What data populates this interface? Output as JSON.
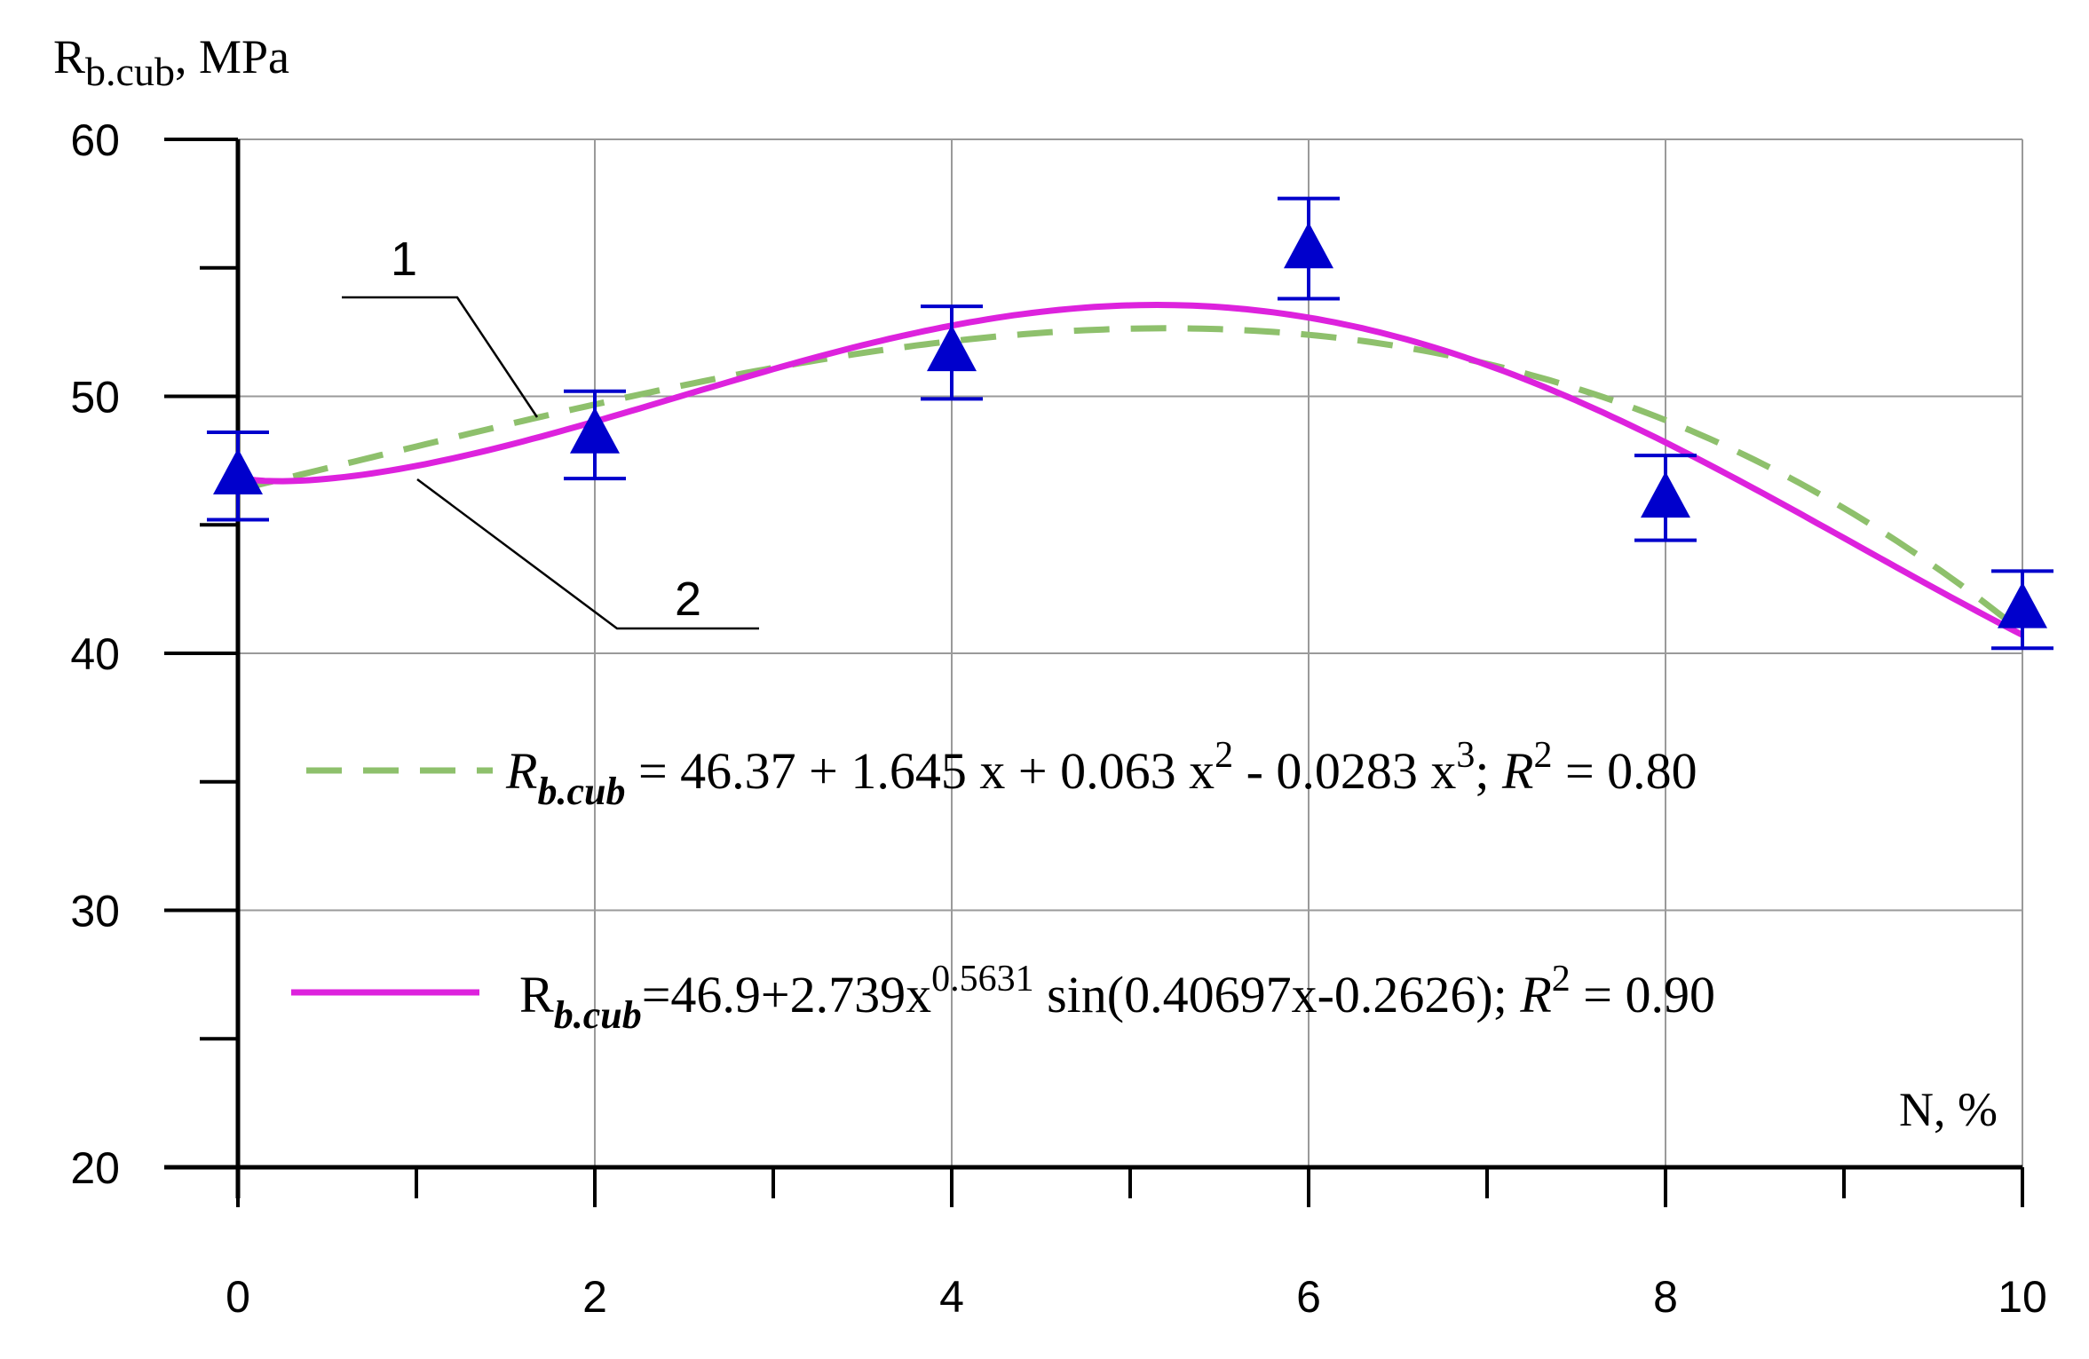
{
  "chart_data": {
    "type": "line",
    "xlim": [
      0,
      10
    ],
    "ylim": [
      20,
      60
    ],
    "x_ticks": [
      0,
      2,
      4,
      6,
      8,
      10
    ],
    "x_tick_labels": [
      "0",
      "2",
      "4",
      "6",
      "8",
      "10"
    ],
    "x_minor_ticks": [
      1,
      3,
      5,
      7,
      9
    ],
    "y_ticks": [
      20,
      30,
      40,
      50,
      60
    ],
    "y_tick_labels": [
      "20",
      "30",
      "40",
      "50",
      "60"
    ],
    "y_minor_ticks": [
      25,
      35,
      45,
      55
    ],
    "grid": true,
    "xlabel": "N, %",
    "ylabel": {
      "main": "R",
      "sub": "b.cub",
      "suffix": ", MPa"
    },
    "points": {
      "marker": "triangle",
      "color": "#0000cc",
      "x": [
        0,
        2,
        4,
        6,
        8,
        10
      ],
      "y": [
        46.9,
        48.5,
        51.7,
        55.7,
        46.0,
        41.7
      ],
      "err_low": [
        45.2,
        46.8,
        49.9,
        53.8,
        44.4,
        40.2
      ],
      "err_high": [
        48.6,
        50.2,
        53.5,
        57.7,
        47.7,
        43.2
      ]
    },
    "series": [
      {
        "callout": "1",
        "style": "dashed",
        "color": "#8ec06c",
        "model": "cubic",
        "coefficients": [
          46.37,
          1.645,
          0.063,
          -0.0283
        ],
        "equation": {
          "lhs_main": "R",
          "lhs_sub": "b.cub",
          "p1": " =  46.37 + 1.645 x + 0.063 x",
          "sup1": "2",
          "p2": " - 0.0283 x",
          "sup2": "3",
          "p3": ";  ",
          "r2_main": "R",
          "r2_sup": "2",
          "r2_value": " = 0.80"
        }
      },
      {
        "callout": "2",
        "style": "solid",
        "color": "#dd22dd",
        "model": "power-sine",
        "coefficients": [
          46.9,
          2.739,
          0.5631,
          0.40697,
          -0.2626
        ],
        "equation": {
          "lhs_main": "R",
          "lhs_sub": "b.cub",
          "p1": "=46.9+2.739x",
          "sup1": "0.5631",
          "p2": " sin(0.40697x-0.2626);  ",
          "r2_main": "R",
          "r2_sup": "2",
          "r2_value": " = 0.90"
        }
      }
    ]
  }
}
